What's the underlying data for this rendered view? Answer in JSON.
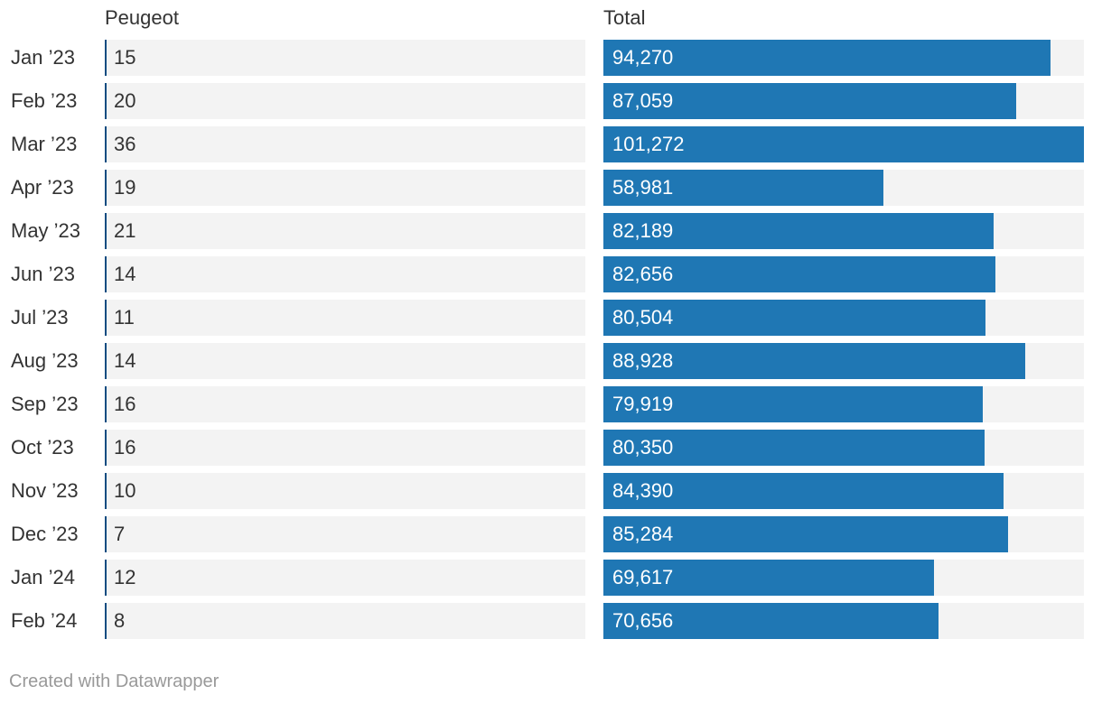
{
  "chart_data": {
    "type": "bar",
    "orientation": "horizontal",
    "layout": "split-bars",
    "categories": [
      "Jan ’23",
      "Feb ’23",
      "Mar ’23",
      "Apr ’23",
      "May ’23",
      "Jun ’23",
      "Jul ’23",
      "Aug ’23",
      "Sep ’23",
      "Oct ’23",
      "Nov ’23",
      "Dec ’23",
      "Jan ’24",
      "Feb ’24"
    ],
    "series": [
      {
        "name": "Peugeot",
        "values": [
          15,
          20,
          36,
          19,
          21,
          14,
          11,
          14,
          16,
          16,
          10,
          7,
          12,
          8
        ],
        "labels": [
          "15",
          "20",
          "36",
          "19",
          "21",
          "14",
          "11",
          "14",
          "16",
          "16",
          "10",
          "7",
          "12",
          "8"
        ],
        "scale_max": 101272,
        "color": "#0f4c81"
      },
      {
        "name": "Total",
        "values": [
          94270,
          87059,
          101272,
          58981,
          82189,
          82656,
          80504,
          88928,
          79919,
          80350,
          84390,
          85284,
          69617,
          70656
        ],
        "labels": [
          "94,270",
          "87,059",
          "101,272",
          "58,981",
          "82,189",
          "82,656",
          "80,504",
          "88,928",
          "79,919",
          "80,350",
          "84,390",
          "85,284",
          "69,617",
          "70,656"
        ],
        "scale_max": 101272,
        "color": "#1f77b4"
      }
    ],
    "xlim": [
      0,
      101272
    ],
    "grid": false,
    "legend": "none",
    "track_color": "#f3f3f3"
  },
  "footer": {
    "credit": "Created with Datawrapper"
  }
}
